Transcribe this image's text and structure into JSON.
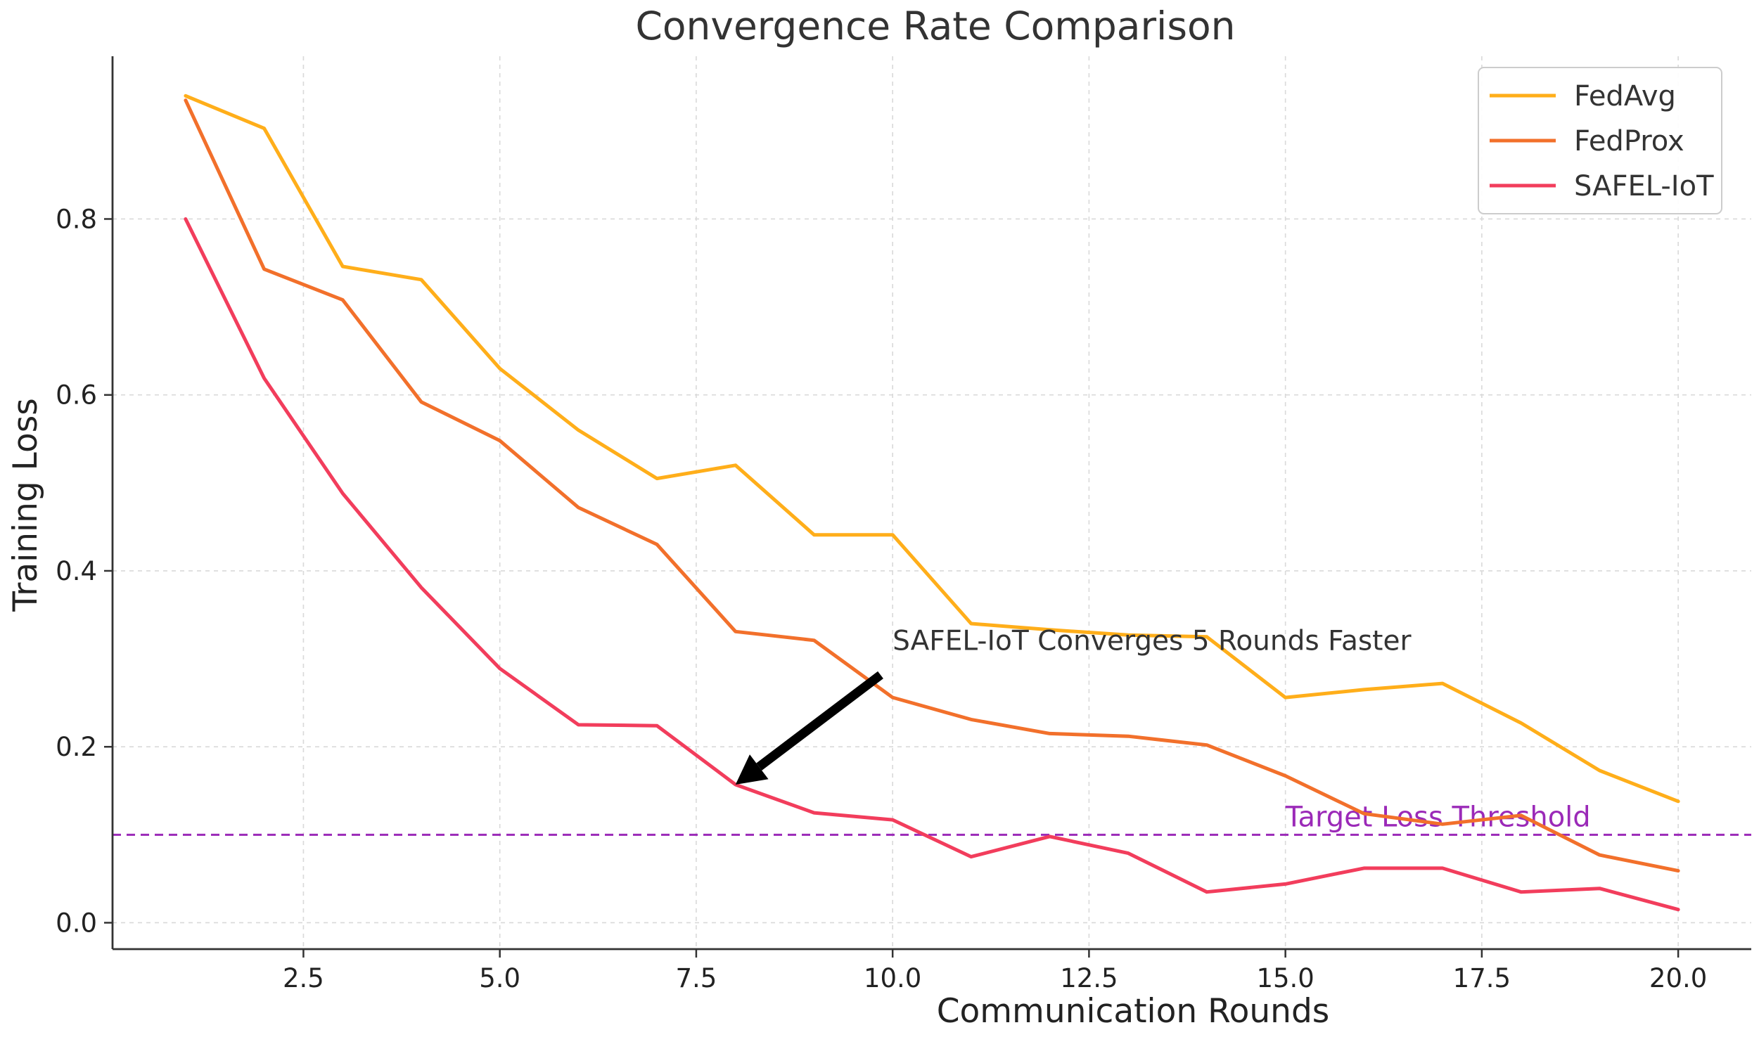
{
  "chart_data": {
    "type": "line",
    "title": "Convergence Rate Comparison",
    "xlabel": "Communication Rounds",
    "ylabel": "Training Loss",
    "x": [
      1,
      2,
      3,
      4,
      5,
      6,
      7,
      8,
      9,
      10,
      11,
      12,
      13,
      14,
      15,
      16,
      17,
      18,
      19,
      20
    ],
    "xlim": [
      0.07,
      20.93
    ],
    "ylim": [
      -0.03,
      0.985
    ],
    "xticks": [
      2.5,
      5.0,
      7.5,
      10.0,
      12.5,
      15.0,
      17.5,
      20.0
    ],
    "xtick_labels": [
      "2.5",
      "5.0",
      "7.5",
      "10.0",
      "12.5",
      "15.0",
      "17.5",
      "20.0"
    ],
    "yticks": [
      0.0,
      0.2,
      0.4,
      0.6,
      0.8
    ],
    "ytick_labels": [
      "0.0",
      "0.2",
      "0.4",
      "0.6",
      "0.8"
    ],
    "grid": true,
    "legend_position": "top-right",
    "series": [
      {
        "name": "FedAvg",
        "color": "#FFAE1A",
        "values": [
          0.94,
          0.903,
          0.746,
          0.731,
          0.63,
          0.56,
          0.505,
          0.52,
          0.441,
          0.441,
          0.34,
          0.333,
          0.327,
          0.325,
          0.256,
          0.265,
          0.272,
          0.227,
          0.173,
          0.138
        ]
      },
      {
        "name": "FedProx",
        "color": "#F2702B",
        "values": [
          0.935,
          0.743,
          0.708,
          0.592,
          0.548,
          0.472,
          0.43,
          0.331,
          0.321,
          0.256,
          0.231,
          0.215,
          0.212,
          0.202,
          0.167,
          0.124,
          0.112,
          0.122,
          0.077,
          0.059
        ]
      },
      {
        "name": "SAFEL-IoT",
        "color": "#F23D5C",
        "values": [
          0.8,
          0.619,
          0.488,
          0.381,
          0.289,
          0.225,
          0.224,
          0.157,
          0.125,
          0.117,
          0.075,
          0.098,
          0.079,
          0.035,
          0.044,
          0.062,
          0.062,
          0.035,
          0.039,
          0.015
        ]
      }
    ],
    "threshold": {
      "value": 0.1,
      "label": "Target Loss Threshold",
      "color": "#9B2AB8",
      "label_x": 15.0
    },
    "annotation": {
      "text": "SAFEL-IoT Converges 5 Rounds Faster",
      "point_x": 8,
      "point_y": 0.157,
      "text_x": 10.0,
      "text_y": 0.31
    }
  }
}
